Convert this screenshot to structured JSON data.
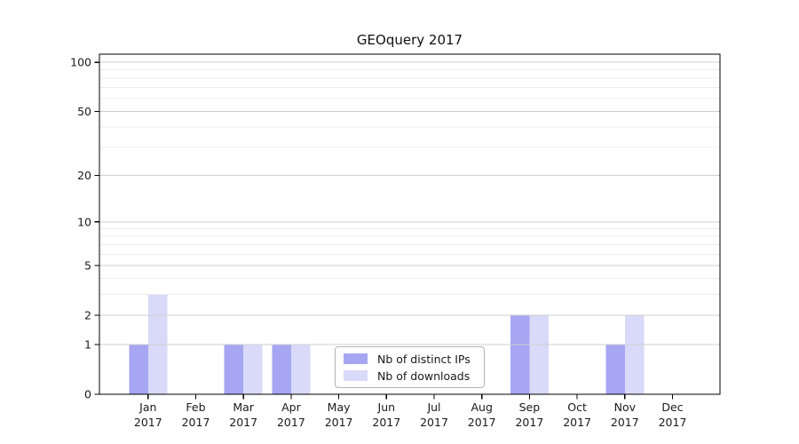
{
  "chart_data": {
    "type": "bar",
    "title": "GEOquery 2017",
    "categories": [
      "Jan 2017",
      "Feb 2017",
      "Mar 2017",
      "Apr 2017",
      "May 2017",
      "Jun 2017",
      "Jul 2017",
      "Aug 2017",
      "Sep 2017",
      "Oct 2017",
      "Nov 2017",
      "Dec 2017"
    ],
    "series": [
      {
        "name": "Nb of distinct IPs",
        "color": "#a6a6f2",
        "values": [
          1,
          0,
          1,
          1,
          0,
          0,
          0,
          0,
          2,
          0,
          1,
          0
        ]
      },
      {
        "name": "Nb of downloads",
        "color": "#d9d9f9",
        "values": [
          3,
          0,
          1,
          1,
          0,
          0,
          0,
          0,
          2,
          0,
          2,
          0
        ]
      }
    ],
    "y_axis": {
      "scale": "log10(value+1)",
      "tick_labels": [
        0,
        1,
        2,
        5,
        10,
        20,
        50,
        100
      ],
      "minor_gridlines": [
        3,
        4,
        6,
        7,
        8,
        9,
        30,
        40,
        60,
        70,
        80,
        90
      ],
      "range": [
        0,
        112
      ]
    },
    "grid": {
      "major_color": "#cfcfcf",
      "minor_color": "#ececec",
      "enabled": true
    },
    "legend": {
      "position": "lower-center"
    },
    "colors": {
      "spine": "#000000",
      "tick_text": "#1a1a1a"
    }
  }
}
